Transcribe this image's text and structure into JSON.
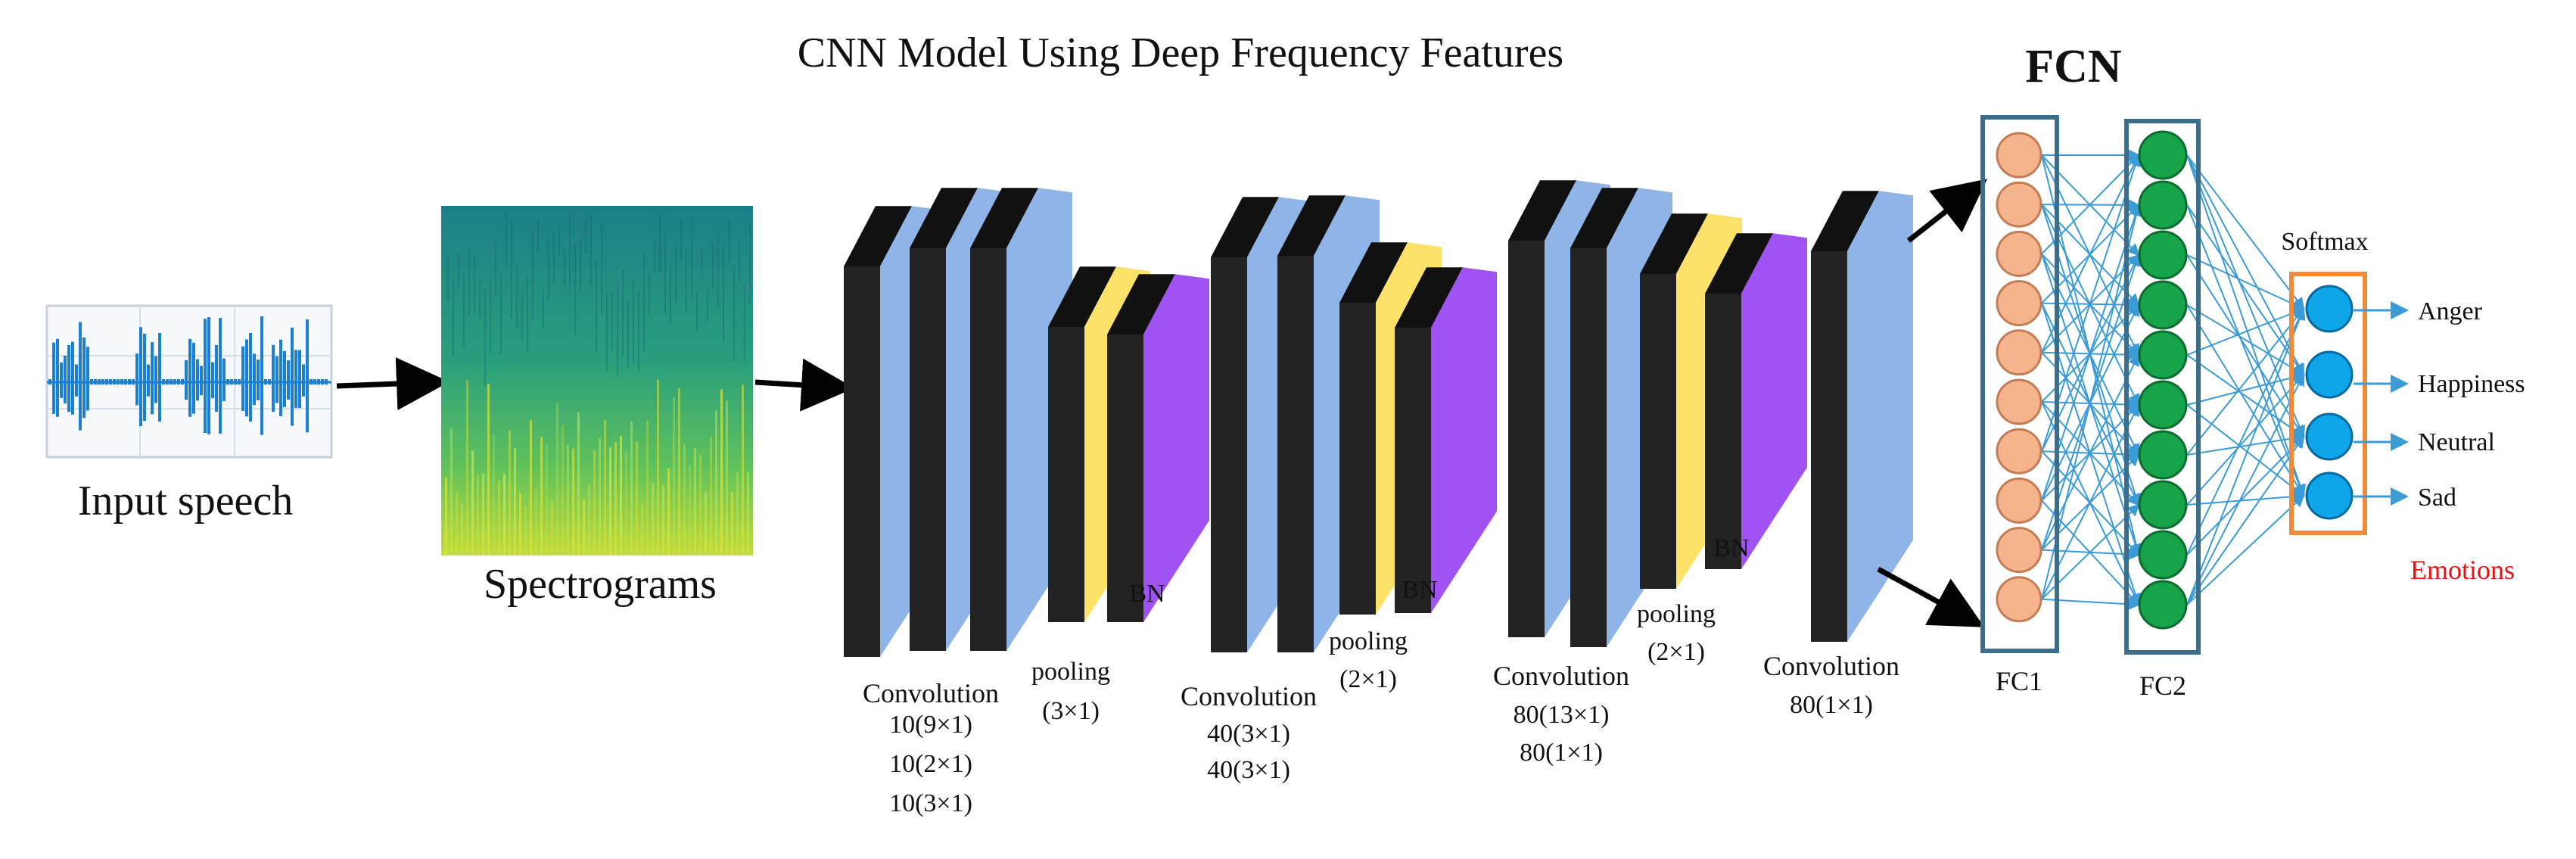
{
  "title": "CNN Model Using Deep Frequency Features",
  "input_label": "Input speech",
  "spectrogram_label": "Spectrograms",
  "fcn_title": "FCN",
  "softmax_label": "Softmax",
  "emotions_label": "Emotions",
  "fc1_label": "FC1",
  "fc2_label": "FC2",
  "bn_label": "BN",
  "conv_blocks": [
    {
      "conv_label": "Convolution",
      "conv_params": [
        "10(9×1)",
        "10(2×1)",
        "10(3×1)"
      ],
      "pool_label": "pooling",
      "pool_param": "(3×1)"
    },
    {
      "conv_label": "Convolution",
      "conv_params": [
        "40(3×1)",
        "40(3×1)"
      ],
      "pool_label": "pooling",
      "pool_param": "(2×1)"
    },
    {
      "conv_label": "Convolution",
      "conv_params": [
        "80(13×1)",
        "80(1×1)"
      ],
      "pool_label": "pooling",
      "pool_param": "(2×1)"
    }
  ],
  "final_conv": {
    "label": "Convolution",
    "param": "80(1×1)"
  },
  "outputs": [
    "Anger",
    "Happiness",
    "Neutral",
    "Sad"
  ],
  "colors": {
    "conv_face": "#8fb4e8",
    "slab_dark": "#222222",
    "pool_face": "#fde269",
    "bn_face": "#a052f5",
    "fc1_node": "#f6b48d",
    "fc2_node": "#16a34a",
    "softmax_node": "#0ea5e9",
    "softmax_box": "#ee8a3a",
    "fc_box": "#3a6e8c",
    "connection": "#3b9bd6",
    "emotions_text": "#e81010"
  }
}
